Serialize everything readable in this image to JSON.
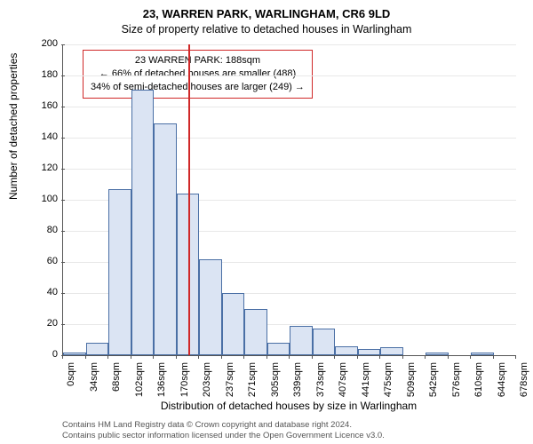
{
  "title_line1": "23, WARREN PARK, WARLINGHAM, CR6 9LD",
  "title_line2": "Size of property relative to detached houses in Warlingham",
  "ylabel": "Number of detached properties",
  "xlabel": "Distribution of detached houses by size in Warlingham",
  "chart": {
    "type": "histogram",
    "ylim": [
      0,
      200
    ],
    "ytick_step": 20,
    "yticks": [
      0,
      20,
      40,
      60,
      80,
      100,
      120,
      140,
      160,
      180,
      200
    ],
    "xtick_labels": [
      "0sqm",
      "34sqm",
      "68sqm",
      "102sqm",
      "136sqm",
      "170sqm",
      "203sqm",
      "237sqm",
      "271sqm",
      "305sqm",
      "339sqm",
      "373sqm",
      "407sqm",
      "441sqm",
      "475sqm",
      "509sqm",
      "542sqm",
      "576sqm",
      "610sqm",
      "644sqm",
      "678sqm"
    ],
    "n_bins": 20,
    "bin_values": [
      2,
      8,
      107,
      171,
      149,
      104,
      62,
      40,
      30,
      8,
      19,
      17,
      6,
      4,
      5,
      0,
      2,
      0,
      2,
      0
    ],
    "bar_fill": "#dbe4f3",
    "bar_stroke": "#4a6fa5",
    "grid_color": "#e8e8e8",
    "background_color": "#ffffff",
    "marker_value_sqm": 188,
    "marker_normalized_x": 0.2773,
    "marker_color": "#d02828"
  },
  "annotation": {
    "line1": "23 WARREN PARK: 188sqm",
    "line2": "← 66% of detached houses are smaller (488)",
    "line3": "34% of semi-detached houses are larger (249) →",
    "border_color": "#d02828",
    "background": "#ffffff",
    "fontsize": 11
  },
  "footer": {
    "line1": "Contains HM Land Registry data © Crown copyright and database right 2024.",
    "line2": "Contains public sector information licensed under the Open Government Licence v3.0."
  }
}
